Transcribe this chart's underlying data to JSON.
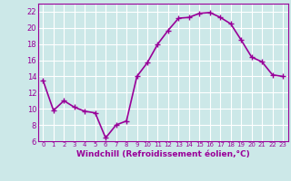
{
  "x": [
    0,
    1,
    2,
    3,
    4,
    5,
    6,
    7,
    8,
    9,
    10,
    11,
    12,
    13,
    14,
    15,
    16,
    17,
    18,
    19,
    20,
    21,
    22,
    23
  ],
  "y": [
    13.5,
    9.8,
    11.0,
    10.2,
    9.7,
    9.5,
    6.4,
    8.0,
    8.5,
    14.0,
    15.7,
    18.0,
    19.7,
    21.2,
    21.3,
    21.8,
    21.9,
    21.3,
    20.5,
    18.5,
    16.4,
    15.8,
    14.2,
    14.0
  ],
  "color": "#990099",
  "bg_color": "#cce8e8",
  "grid_color": "#ffffff",
  "ylim": [
    6,
    23
  ],
  "xlim": [
    -0.5,
    23.5
  ],
  "yticks": [
    6,
    8,
    10,
    12,
    14,
    16,
    18,
    20,
    22
  ],
  "xtick_labels": [
    "0",
    "1",
    "2",
    "3",
    "4",
    "5",
    "6",
    "7",
    "8",
    "9",
    "10",
    "11",
    "12",
    "13",
    "14",
    "15",
    "16",
    "17",
    "18",
    "19",
    "20",
    "21",
    "22",
    "23"
  ],
  "xlabel": "Windchill (Refroidissement éolien,°C)",
  "marker": "+",
  "marker_size": 4,
  "linewidth": 1.2
}
